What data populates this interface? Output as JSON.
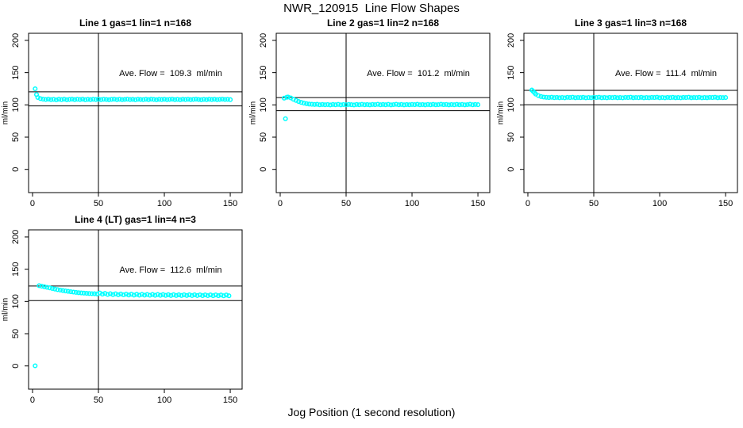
{
  "figure": {
    "background": "#FFFFFF",
    "axis_color": "#000000",
    "point_color": "#00FFFF"
  },
  "chart_data": {
    "type": "scatter",
    "title": "NWR_120915  Line Flow Shapes",
    "xlabel": "Jog Position (1 second resolution)",
    "ylabel": "ml/min",
    "point_color": "#00FFFF",
    "x_ticks": [
      0,
      50,
      100,
      150
    ],
    "y_ticks": [
      0,
      50,
      100,
      150,
      200
    ],
    "xlim": [
      -3,
      159
    ],
    "ylim": [
      -36,
      211
    ],
    "grid": false,
    "vline_x": 50,
    "subplots": [
      {
        "title": "Line 1 gas=1 lin=1 n=168",
        "annotation": "Ave. Flow =  109.3  ml/min",
        "ave_flow": 109.3,
        "hlines": [
          120.2,
          98.4
        ],
        "points": [
          [
            2,
            125.0
          ],
          [
            3,
            116.0
          ],
          [
            4,
            111.5
          ],
          [
            6,
            109.8
          ],
          [
            8,
            108.9
          ],
          [
            10,
            108.4
          ],
          [
            12,
            108.9
          ],
          [
            14,
            108.1
          ],
          [
            16,
            108.6
          ],
          [
            18,
            107.8
          ],
          [
            20,
            108.8
          ],
          [
            22,
            108.2
          ],
          [
            24,
            108.9
          ],
          [
            26,
            108.0
          ],
          [
            28,
            108.5
          ],
          [
            30,
            108.9
          ],
          [
            32,
            108.1
          ],
          [
            34,
            108.7
          ],
          [
            36,
            108.3
          ],
          [
            38,
            108.9
          ],
          [
            40,
            108.0
          ],
          [
            42,
            108.6
          ],
          [
            44,
            108.2
          ],
          [
            46,
            108.8
          ],
          [
            48,
            108.3
          ],
          [
            50,
            108.7
          ],
          [
            52,
            108.1
          ],
          [
            54,
            108.8
          ],
          [
            56,
            108.4
          ],
          [
            58,
            108.0
          ],
          [
            60,
            108.6
          ],
          [
            62,
            108.9
          ],
          [
            64,
            108.2
          ],
          [
            66,
            108.7
          ],
          [
            68,
            108.1
          ],
          [
            70,
            108.5
          ],
          [
            72,
            108.9
          ],
          [
            74,
            108.3
          ],
          [
            76,
            108.6
          ],
          [
            78,
            108.0
          ],
          [
            80,
            108.8
          ],
          [
            82,
            108.4
          ],
          [
            84,
            108.1
          ],
          [
            86,
            108.7
          ],
          [
            88,
            108.2
          ],
          [
            90,
            108.9
          ],
          [
            92,
            108.5
          ],
          [
            94,
            108.0
          ],
          [
            96,
            108.6
          ],
          [
            98,
            108.3
          ],
          [
            100,
            108.8
          ],
          [
            102,
            108.1
          ],
          [
            104,
            108.5
          ],
          [
            106,
            108.9
          ],
          [
            108,
            108.2
          ],
          [
            110,
            108.6
          ],
          [
            112,
            108.0
          ],
          [
            114,
            108.7
          ],
          [
            116,
            108.3
          ],
          [
            118,
            108.8
          ],
          [
            120,
            108.1
          ],
          [
            122,
            108.5
          ],
          [
            124,
            108.9
          ],
          [
            126,
            108.4
          ],
          [
            128,
            108.0
          ],
          [
            130,
            108.6
          ],
          [
            132,
            108.2
          ],
          [
            134,
            108.8
          ],
          [
            136,
            108.3
          ],
          [
            138,
            108.7
          ],
          [
            140,
            108.1
          ],
          [
            142,
            108.5
          ],
          [
            144,
            108.9
          ],
          [
            146,
            108.4
          ],
          [
            148,
            108.6
          ],
          [
            150,
            108.2
          ]
        ]
      },
      {
        "title": "Line 2 gas=1 lin=2 n=168",
        "annotation": "Ave. Flow =  101.2  ml/min",
        "ave_flow": 101.2,
        "hlines": [
          111.3,
          91.1
        ],
        "points": [
          [
            3,
            110.5
          ],
          [
            4,
            78.5
          ],
          [
            5,
            111.8
          ],
          [
            6,
            112.2
          ],
          [
            8,
            110.8
          ],
          [
            10,
            108.8
          ],
          [
            12,
            106.9
          ],
          [
            14,
            105.2
          ],
          [
            16,
            103.8
          ],
          [
            18,
            102.7
          ],
          [
            20,
            101.9
          ],
          [
            22,
            101.3
          ],
          [
            24,
            100.9
          ],
          [
            26,
            100.6
          ],
          [
            28,
            100.9
          ],
          [
            30,
            100.2
          ],
          [
            32,
            100.7
          ],
          [
            34,
            100.1
          ],
          [
            36,
            100.5
          ],
          [
            38,
            99.9
          ],
          [
            40,
            100.6
          ],
          [
            42,
            100.2
          ],
          [
            44,
            100.8
          ],
          [
            46,
            100.0
          ],
          [
            48,
            100.5
          ],
          [
            50,
            100.1
          ],
          [
            52,
            100.7
          ],
          [
            54,
            100.3
          ],
          [
            56,
            99.9
          ],
          [
            58,
            100.6
          ],
          [
            60,
            100.2
          ],
          [
            62,
            100.8
          ],
          [
            64,
            100.1
          ],
          [
            66,
            100.5
          ],
          [
            68,
            100.0
          ],
          [
            70,
            100.7
          ],
          [
            72,
            100.3
          ],
          [
            74,
            100.9
          ],
          [
            76,
            100.1
          ],
          [
            78,
            100.6
          ],
          [
            80,
            100.2
          ],
          [
            82,
            100.8
          ],
          [
            84,
            100.0
          ],
          [
            86,
            100.4
          ],
          [
            88,
            100.9
          ],
          [
            90,
            100.2
          ],
          [
            92,
            100.6
          ],
          [
            94,
            100.0
          ],
          [
            96,
            100.5
          ],
          [
            98,
            100.1
          ],
          [
            100,
            100.7
          ],
          [
            102,
            100.3
          ],
          [
            104,
            100.9
          ],
          [
            106,
            100.1
          ],
          [
            108,
            100.5
          ],
          [
            110,
            100.0
          ],
          [
            112,
            100.6
          ],
          [
            114,
            100.2
          ],
          [
            116,
            100.8
          ],
          [
            118,
            100.1
          ],
          [
            120,
            100.4
          ],
          [
            122,
            100.9
          ],
          [
            124,
            100.3
          ],
          [
            126,
            100.7
          ],
          [
            128,
            100.0
          ],
          [
            130,
            100.5
          ],
          [
            132,
            100.2
          ],
          [
            134,
            100.8
          ],
          [
            136,
            100.1
          ],
          [
            138,
            100.6
          ],
          [
            140,
            100.0
          ],
          [
            142,
            100.4
          ],
          [
            144,
            100.9
          ],
          [
            146,
            100.2
          ],
          [
            148,
            100.6
          ],
          [
            150,
            100.3
          ]
        ]
      },
      {
        "title": "Line 3 gas=1 lin=3 n=168",
        "annotation": "Ave. Flow =  111.4  ml/min",
        "ave_flow": 111.4,
        "hlines": [
          122.5,
          100.3
        ],
        "points": [
          [
            3,
            123.0
          ],
          [
            4,
            121.0
          ],
          [
            5,
            118.8
          ],
          [
            6,
            116.8
          ],
          [
            8,
            114.3
          ],
          [
            10,
            112.9
          ],
          [
            12,
            112.1
          ],
          [
            14,
            111.7
          ],
          [
            16,
            111.4
          ],
          [
            18,
            111.8
          ],
          [
            20,
            111.2
          ],
          [
            22,
            111.6
          ],
          [
            24,
            111.1
          ],
          [
            26,
            111.5
          ],
          [
            28,
            111.0
          ],
          [
            30,
            111.7
          ],
          [
            32,
            111.3
          ],
          [
            34,
            111.8
          ],
          [
            36,
            111.1
          ],
          [
            38,
            111.5
          ],
          [
            40,
            111.2
          ],
          [
            42,
            111.7
          ],
          [
            44,
            111.0
          ],
          [
            46,
            111.4
          ],
          [
            48,
            111.1
          ],
          [
            50,
            111.6
          ],
          [
            52,
            111.3
          ],
          [
            54,
            111.8
          ],
          [
            56,
            111.1
          ],
          [
            58,
            111.5
          ],
          [
            60,
            111.0
          ],
          [
            62,
            111.6
          ],
          [
            64,
            111.2
          ],
          [
            66,
            111.7
          ],
          [
            68,
            111.1
          ],
          [
            70,
            111.4
          ],
          [
            72,
            111.0
          ],
          [
            74,
            111.6
          ],
          [
            76,
            111.3
          ],
          [
            78,
            111.8
          ],
          [
            80,
            111.1
          ],
          [
            82,
            111.5
          ],
          [
            84,
            111.2
          ],
          [
            86,
            111.7
          ],
          [
            88,
            111.0
          ],
          [
            90,
            111.4
          ],
          [
            92,
            111.1
          ],
          [
            94,
            111.6
          ],
          [
            96,
            111.3
          ],
          [
            98,
            111.8
          ],
          [
            100,
            111.1
          ],
          [
            102,
            111.5
          ],
          [
            104,
            111.0
          ],
          [
            106,
            111.6
          ],
          [
            108,
            111.2
          ],
          [
            110,
            111.7
          ],
          [
            112,
            111.1
          ],
          [
            114,
            111.4
          ],
          [
            116,
            111.0
          ],
          [
            118,
            111.6
          ],
          [
            120,
            111.3
          ],
          [
            122,
            111.8
          ],
          [
            124,
            111.1
          ],
          [
            126,
            111.5
          ],
          [
            128,
            111.2
          ],
          [
            130,
            111.7
          ],
          [
            132,
            111.0
          ],
          [
            134,
            111.4
          ],
          [
            136,
            111.1
          ],
          [
            138,
            111.6
          ],
          [
            140,
            111.3
          ],
          [
            142,
            111.8
          ],
          [
            144,
            111.1
          ],
          [
            146,
            111.5
          ],
          [
            148,
            111.2
          ],
          [
            150,
            111.4
          ]
        ]
      },
      {
        "title": "Line 4 (LT) gas=1 lin=4 n=3",
        "annotation": "Ave. Flow =  112.6  ml/min",
        "ave_flow": 112.6,
        "hlines": [
          123.9,
          101.3
        ],
        "points": [
          [
            2,
            0.2
          ],
          [
            5,
            124.5
          ],
          [
            7,
            123.6
          ],
          [
            9,
            122.8
          ],
          [
            11,
            121.9
          ],
          [
            13,
            121.0
          ],
          [
            15,
            120.1
          ],
          [
            17,
            119.2
          ],
          [
            19,
            118.4
          ],
          [
            21,
            117.6
          ],
          [
            23,
            116.9
          ],
          [
            25,
            116.2
          ],
          [
            27,
            115.6
          ],
          [
            29,
            115.0
          ],
          [
            31,
            114.5
          ],
          [
            33,
            114.0
          ],
          [
            35,
            113.6
          ],
          [
            37,
            113.2
          ],
          [
            39,
            112.9
          ],
          [
            41,
            112.6
          ],
          [
            43,
            112.3
          ],
          [
            45,
            112.1
          ],
          [
            47,
            111.9
          ],
          [
            49,
            111.7
          ],
          [
            51,
            113.0
          ],
          [
            53,
            111.4
          ],
          [
            55,
            112.4
          ],
          [
            57,
            110.9
          ],
          [
            59,
            112.0
          ],
          [
            61,
            110.6
          ],
          [
            63,
            111.8
          ],
          [
            65,
            110.4
          ],
          [
            67,
            111.6
          ],
          [
            69,
            110.2
          ],
          [
            71,
            111.4
          ],
          [
            73,
            110.0
          ],
          [
            75,
            111.2
          ],
          [
            77,
            109.9
          ],
          [
            79,
            111.1
          ],
          [
            81,
            109.8
          ],
          [
            83,
            111.0
          ],
          [
            85,
            109.7
          ],
          [
            87,
            110.9
          ],
          [
            89,
            109.6
          ],
          [
            91,
            110.8
          ],
          [
            93,
            109.5
          ],
          [
            95,
            110.7
          ],
          [
            97,
            109.5
          ],
          [
            99,
            110.6
          ],
          [
            101,
            109.4
          ],
          [
            103,
            110.5
          ],
          [
            105,
            109.3
          ],
          [
            107,
            110.5
          ],
          [
            109,
            109.3
          ],
          [
            111,
            110.4
          ],
          [
            113,
            109.2
          ],
          [
            115,
            110.4
          ],
          [
            117,
            109.2
          ],
          [
            119,
            110.3
          ],
          [
            121,
            109.1
          ],
          [
            123,
            110.3
          ],
          [
            125,
            109.1
          ],
          [
            127,
            110.2
          ],
          [
            129,
            109.0
          ],
          [
            131,
            110.2
          ],
          [
            133,
            109.0
          ],
          [
            135,
            110.1
          ],
          [
            137,
            108.9
          ],
          [
            139,
            110.1
          ],
          [
            141,
            108.9
          ],
          [
            143,
            110.0
          ],
          [
            145,
            108.8
          ],
          [
            147,
            110.0
          ],
          [
            149,
            108.8
          ]
        ]
      }
    ]
  }
}
